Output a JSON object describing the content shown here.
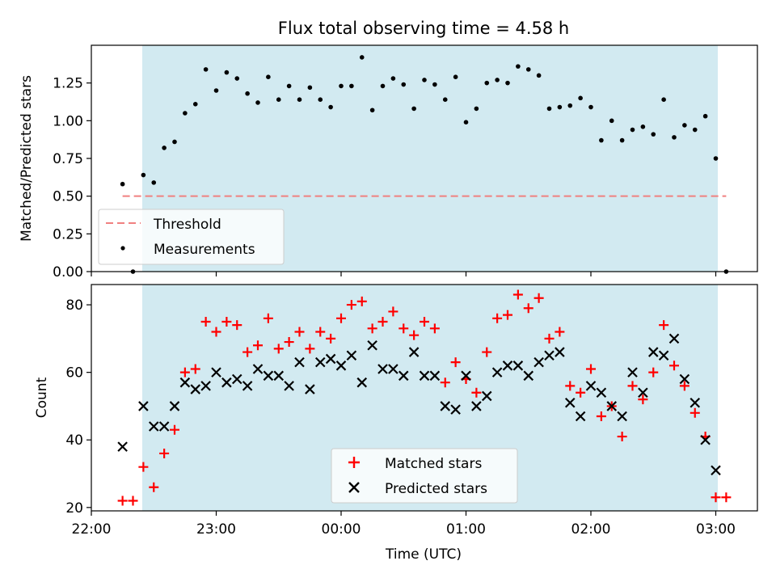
{
  "title": "Flux total observing time = 4.58 h",
  "colors": {
    "shade": "#add8e6",
    "threshold": "#f08080",
    "matched": "#ff0000",
    "predicted": "#000000",
    "measurement": "#000000"
  },
  "chart_data": [
    {
      "type": "scatter",
      "title": "Flux total observing time = 4.58 h",
      "xlabel": "",
      "ylabel": "Matched/Predicted stars",
      "ylim": [
        0,
        1.5
      ],
      "yticks": [
        "0.00",
        "0.25",
        "0.50",
        "0.75",
        "1.00",
        "1.25"
      ],
      "shaded_span": [
        "22:37",
        "23:55+3:00"
      ],
      "legend": {
        "placement": "lower-left",
        "entries": [
          "Threshold",
          "Measurements"
        ]
      },
      "threshold": {
        "name": "Threshold",
        "y": 0.5,
        "x_from": "22:15",
        "x_to": "03:05"
      },
      "series": [
        {
          "name": "Measurements",
          "x": [
            "22:15",
            "22:20",
            "22:25",
            "22:30",
            "22:35",
            "22:40",
            "22:45",
            "22:50",
            "22:55",
            "23:00",
            "23:05",
            "23:10",
            "23:15",
            "23:20",
            "23:25",
            "23:30",
            "23:35",
            "23:40",
            "23:45",
            "23:50",
            "23:55",
            "00:00",
            "00:05",
            "00:10",
            "00:15",
            "00:20",
            "00:25",
            "00:30",
            "00:35",
            "00:40",
            "00:45",
            "00:50",
            "00:55",
            "01:00",
            "01:05",
            "01:10",
            "01:15",
            "01:20",
            "01:25",
            "01:30",
            "01:35",
            "01:40",
            "01:45",
            "01:50",
            "01:55",
            "02:00",
            "02:05",
            "02:10",
            "02:15",
            "02:20",
            "02:25",
            "02:30",
            "02:35",
            "02:40",
            "02:45",
            "02:50",
            "02:55",
            "03:00",
            "03:05"
          ],
          "y": [
            0.58,
            0.0,
            0.64,
            0.59,
            0.82,
            0.86,
            1.05,
            1.11,
            1.34,
            1.2,
            1.32,
            1.28,
            1.18,
            1.12,
            1.29,
            1.14,
            1.23,
            1.14,
            1.22,
            1.14,
            1.09,
            1.23,
            1.23,
            1.42,
            1.07,
            1.23,
            1.28,
            1.24,
            1.08,
            1.27,
            1.24,
            1.14,
            1.29,
            0.99,
            1.08,
            1.25,
            1.27,
            1.25,
            1.36,
            1.34,
            1.3,
            1.08,
            1.09,
            1.1,
            1.15,
            1.09,
            0.87,
            1.0,
            0.87,
            0.94,
            0.96,
            0.91,
            1.14,
            0.89,
            0.97,
            0.94,
            1.03,
            0.75,
            0.0
          ]
        }
      ]
    },
    {
      "type": "scatter",
      "title": "",
      "xlabel": "Time (UTC)",
      "ylabel": "Count",
      "xlim": [
        "22:00",
        "03:20"
      ],
      "xticks": [
        "22:00",
        "23:00",
        "00:00",
        "01:00",
        "02:00",
        "03:00"
      ],
      "ylim": [
        19,
        86
      ],
      "yticks": [
        "20",
        "40",
        "60",
        "80"
      ],
      "legend": {
        "placement": "bottom-center",
        "entries": [
          "Matched stars",
          "Predicted stars"
        ]
      },
      "series": [
        {
          "name": "Matched stars",
          "x": [
            "22:15",
            "22:20",
            "22:25",
            "22:30",
            "22:35",
            "22:40",
            "22:45",
            "22:50",
            "22:55",
            "23:00",
            "23:05",
            "23:10",
            "23:15",
            "23:20",
            "23:25",
            "23:30",
            "23:35",
            "23:40",
            "23:45",
            "23:50",
            "23:55",
            "00:00",
            "00:05",
            "00:10",
            "00:15",
            "00:20",
            "00:25",
            "00:30",
            "00:35",
            "00:40",
            "00:45",
            "00:50",
            "00:55",
            "01:00",
            "01:05",
            "01:10",
            "01:15",
            "01:20",
            "01:25",
            "01:30",
            "01:35",
            "01:40",
            "01:45",
            "01:50",
            "01:55",
            "02:00",
            "02:05",
            "02:10",
            "02:15",
            "02:20",
            "02:25",
            "02:30",
            "02:35",
            "02:40",
            "02:45",
            "02:50",
            "02:55",
            "03:00",
            "03:05"
          ],
          "y": [
            22,
            22,
            32,
            26,
            36,
            43,
            60,
            61,
            75,
            72,
            75,
            74,
            66,
            68,
            76,
            67,
            69,
            72,
            67,
            72,
            70,
            76,
            80,
            81,
            73,
            75,
            78,
            73,
            71,
            75,
            73,
            57,
            63,
            58,
            54,
            66,
            76,
            77,
            83,
            79,
            82,
            70,
            72,
            56,
            54,
            61,
            47,
            50,
            41,
            56,
            52,
            60,
            74,
            62,
            56,
            48,
            41,
            23,
            23
          ]
        },
        {
          "name": "Predicted stars",
          "x": [
            "22:15",
            "22:25",
            "22:30",
            "22:35",
            "22:40",
            "22:45",
            "22:50",
            "22:55",
            "23:00",
            "23:05",
            "23:10",
            "23:15",
            "23:20",
            "23:25",
            "23:30",
            "23:35",
            "23:40",
            "23:45",
            "23:50",
            "23:55",
            "00:00",
            "00:05",
            "00:10",
            "00:15",
            "00:20",
            "00:25",
            "00:30",
            "00:35",
            "00:40",
            "00:45",
            "00:50",
            "00:55",
            "01:00",
            "01:05",
            "01:10",
            "01:15",
            "01:20",
            "01:25",
            "01:30",
            "01:35",
            "01:40",
            "01:45",
            "01:50",
            "01:55",
            "02:00",
            "02:05",
            "02:10",
            "02:15",
            "02:20",
            "02:25",
            "02:30",
            "02:35",
            "02:40",
            "02:45",
            "02:50",
            "02:55",
            "03:00"
          ],
          "y": [
            38,
            50,
            44,
            44,
            50,
            57,
            55,
            56,
            60,
            57,
            58,
            56,
            61,
            59,
            59,
            56,
            63,
            55,
            63,
            64,
            62,
            65,
            57,
            68,
            61,
            61,
            59,
            66,
            59,
            59,
            50,
            49,
            59,
            50,
            53,
            60,
            62,
            62,
            59,
            63,
            65,
            66,
            51,
            47,
            56,
            54,
            50,
            47,
            60,
            54,
            66,
            65,
            70,
            58,
            51,
            40,
            31
          ]
        }
      ]
    }
  ]
}
